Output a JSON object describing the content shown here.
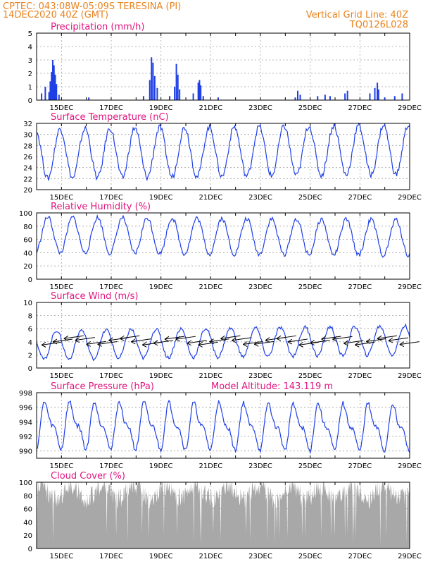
{
  "header": {
    "line1": "CPTEC:    043:08W-05:09S   TERESINA (PI)",
    "line2": "14DEC2020 40Z (GMT)",
    "grid_note": "Vertical Grid Line: 40Z",
    "code": "TQ0126L028"
  },
  "colors": {
    "header": "#e8821e",
    "panel_title": "#e0157f",
    "line": "#1f3fe6",
    "bars": "#1f3fe6",
    "cloud": "#a8a8a8",
    "grid": "#a0a0a0"
  },
  "chart_data": [
    {
      "type": "bar",
      "title": "Precipitation (mm/h)",
      "ylim": [
        0,
        5
      ],
      "yticks": [
        0,
        1,
        2,
        3,
        4,
        5
      ],
      "xlim": [
        14,
        29
      ],
      "xticks": [
        "15DEC",
        "17DEC",
        "19DEC",
        "21DEC",
        "23DEC",
        "25DEC",
        "27DEC",
        "29DEC"
      ],
      "grid": true,
      "events": [
        {
          "t": 14.2,
          "v": 0.5
        },
        {
          "t": 14.35,
          "v": 1.0
        },
        {
          "t": 14.5,
          "v": 0.6
        },
        {
          "t": 14.55,
          "v": 1.4
        },
        {
          "t": 14.6,
          "v": 2.1
        },
        {
          "t": 14.65,
          "v": 3.0
        },
        {
          "t": 14.7,
          "v": 2.6
        },
        {
          "t": 14.75,
          "v": 1.9
        },
        {
          "t": 14.8,
          "v": 1.2
        },
        {
          "t": 14.9,
          "v": 0.4
        },
        {
          "t": 16.1,
          "v": 0.2
        },
        {
          "t": 18.3,
          "v": 0.3
        },
        {
          "t": 18.55,
          "v": 1.5
        },
        {
          "t": 18.62,
          "v": 3.2
        },
        {
          "t": 18.68,
          "v": 2.8
        },
        {
          "t": 18.75,
          "v": 1.8
        },
        {
          "t": 18.85,
          "v": 0.9
        },
        {
          "t": 19.35,
          "v": 0.3
        },
        {
          "t": 19.55,
          "v": 1.0
        },
        {
          "t": 19.62,
          "v": 2.7
        },
        {
          "t": 19.68,
          "v": 1.9
        },
        {
          "t": 19.75,
          "v": 0.8
        },
        {
          "t": 20.3,
          "v": 0.5
        },
        {
          "t": 20.5,
          "v": 1.3
        },
        {
          "t": 20.55,
          "v": 1.5
        },
        {
          "t": 20.6,
          "v": 1.1
        },
        {
          "t": 20.7,
          "v": 0.3
        },
        {
          "t": 21.3,
          "v": 0.2
        },
        {
          "t": 24.4,
          "v": 0.2
        },
        {
          "t": 24.5,
          "v": 0.7
        },
        {
          "t": 24.6,
          "v": 0.4
        },
        {
          "t": 25.3,
          "v": 0.3
        },
        {
          "t": 25.6,
          "v": 0.4
        },
        {
          "t": 25.8,
          "v": 0.3
        },
        {
          "t": 26.4,
          "v": 0.5
        },
        {
          "t": 26.5,
          "v": 0.7
        },
        {
          "t": 27.4,
          "v": 0.5
        },
        {
          "t": 27.6,
          "v": 0.9
        },
        {
          "t": 27.7,
          "v": 1.3
        },
        {
          "t": 27.75,
          "v": 0.8
        },
        {
          "t": 28.0,
          "v": 0.2
        },
        {
          "t": 28.4,
          "v": 0.3
        },
        {
          "t": 28.7,
          "v": 0.5
        }
      ]
    },
    {
      "type": "line",
      "title": "Surface Temperature (nC)",
      "ylim": [
        20,
        32
      ],
      "yticks": [
        20,
        22,
        24,
        26,
        28,
        30,
        32
      ],
      "xlim": [
        14,
        29
      ],
      "xticks": [
        "15DEC",
        "17DEC",
        "19DEC",
        "21DEC",
        "23DEC",
        "25DEC",
        "27DEC",
        "29DEC"
      ],
      "grid": true,
      "diurnal": {
        "base": 26.5,
        "amp": 4.5,
        "phase": 0.7,
        "trend": 0.05
      },
      "values_desc": "diurnal cycle min ~21-23, max ~28-32"
    },
    {
      "type": "line",
      "title": "Relative Humidity (%)",
      "ylim": [
        0,
        100
      ],
      "yticks": [
        0,
        20,
        40,
        60,
        80,
        100
      ],
      "xlim": [
        14,
        29
      ],
      "xticks": [
        "15DEC",
        "17DEC",
        "19DEC",
        "21DEC",
        "23DEC",
        "25DEC",
        "27DEC",
        "29DEC"
      ],
      "grid": true,
      "diurnal": {
        "base": 67,
        "amp": 27,
        "phase": 0.2,
        "trend": -0.3
      }
    },
    {
      "type": "line",
      "title": "Surface Wind (m/s)",
      "ylim": [
        0,
        10
      ],
      "yticks": [
        0,
        2,
        4,
        6,
        8,
        10
      ],
      "xlim": [
        14,
        29
      ],
      "xticks": [
        "15DEC",
        "17DEC",
        "19DEC",
        "21DEC",
        "23DEC",
        "25DEC",
        "27DEC",
        "29DEC"
      ],
      "grid": true,
      "diurnal": {
        "base": 3.5,
        "amp": 2.2,
        "phase": 0.55,
        "trend": 0.05
      },
      "arrows_note": "wind vectors from east/northeast"
    },
    {
      "type": "line",
      "title": "Surface Pressure (hPa)",
      "subtitle": "Model Altitude: 143.119 m",
      "ylim": [
        989,
        998
      ],
      "yticks": [
        990,
        992,
        994,
        996,
        998
      ],
      "xlim": [
        14,
        29
      ],
      "xticks": [
        "15DEC",
        "17DEC",
        "19DEC",
        "21DEC",
        "23DEC",
        "25DEC",
        "27DEC",
        "29DEC"
      ],
      "grid": true,
      "semidiurnal": {
        "base": 993.5,
        "amp": 2.6,
        "phase": 0.15,
        "trend": -0.02
      }
    },
    {
      "type": "area",
      "title": "Cloud Cover (%)",
      "ylim": [
        0,
        100
      ],
      "yticks": [
        0,
        20,
        40,
        60,
        80,
        100
      ],
      "xlim": [
        14,
        29
      ],
      "xticks": [
        "15DEC",
        "17DEC",
        "19DEC",
        "21DEC",
        "23DEC",
        "25DEC",
        "27DEC",
        "29DEC"
      ],
      "grid": true,
      "level_desc": "mostly 70-100% with frequent drops"
    }
  ]
}
